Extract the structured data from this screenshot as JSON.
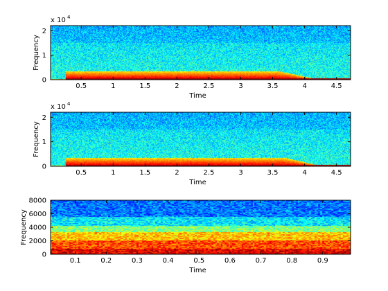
{
  "chart_data": [
    {
      "type": "heatmap",
      "description_kind": "spectrogram",
      "xlabel": "Time",
      "ylabel": "Frequency",
      "xlim": [
        0.02,
        4.72
      ],
      "ylim": [
        0,
        22050
      ],
      "y_multiplier": "x 10",
      "y_multiplier_exp": "4",
      "xticks": [
        0.5,
        1,
        1.5,
        2,
        2.5,
        3,
        3.5,
        4,
        4.5
      ],
      "xtick_labels": [
        "0.5",
        "1",
        "1.5",
        "2",
        "2.5",
        "3",
        "3.5",
        "4",
        "4.5"
      ],
      "yticks": [
        0,
        10000,
        20000
      ],
      "ytick_labels": [
        "0",
        "1",
        "2"
      ],
      "signal_onset_time": 0.25,
      "signal_decay_start_time": 3.6,
      "signal_end_time": 4.25,
      "low_band_max_frequency": 3500,
      "colormap": "jet"
    },
    {
      "type": "heatmap",
      "description_kind": "spectrogram",
      "xlabel": "Time",
      "ylabel": "Frequency",
      "xlim": [
        0.02,
        4.72
      ],
      "ylim": [
        0,
        22050
      ],
      "y_multiplier": "x 10",
      "y_multiplier_exp": "4",
      "xticks": [
        0.5,
        1,
        1.5,
        2,
        2.5,
        3,
        3.5,
        4,
        4.5
      ],
      "xtick_labels": [
        "0.5",
        "1",
        "1.5",
        "2",
        "2.5",
        "3",
        "3.5",
        "4",
        "4.5"
      ],
      "yticks": [
        0,
        10000,
        20000
      ],
      "ytick_labels": [
        "0",
        "1",
        "2"
      ],
      "signal_onset_time": 0.25,
      "signal_decay_start_time": 3.7,
      "signal_end_time": 4.3,
      "low_band_max_frequency": 3500,
      "colormap": "jet"
    },
    {
      "type": "heatmap",
      "description_kind": "spectrogram",
      "xlabel": "Time",
      "ylabel": "Frequency",
      "xlim": [
        0.02,
        0.99
      ],
      "ylim": [
        0,
        8000
      ],
      "xticks": [
        0.1,
        0.2,
        0.3,
        0.4,
        0.5,
        0.6,
        0.7,
        0.8,
        0.9
      ],
      "xtick_labels": [
        "0.1",
        "0.2",
        "0.3",
        "0.4",
        "0.5",
        "0.6",
        "0.7",
        "0.8",
        "0.9"
      ],
      "yticks": [
        0,
        2000,
        4000,
        6000,
        8000
      ],
      "ytick_labels": [
        "0",
        "2000",
        "4000",
        "6000",
        "8000"
      ],
      "colormap": "jet"
    }
  ]
}
